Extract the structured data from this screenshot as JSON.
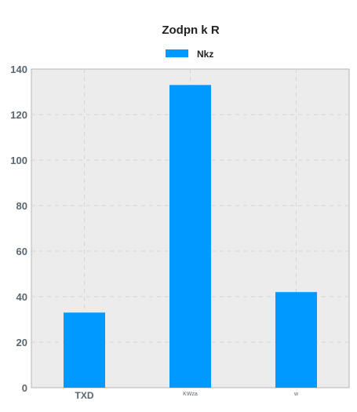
{
  "chart_data": {
    "type": "bar",
    "title": "Zodpn k R",
    "xlabel": "",
    "ylabel": "",
    "categories": [
      "TXD",
      "KWza",
      "w"
    ],
    "series": [
      {
        "name": "Nkz",
        "values": [
          33,
          133,
          42
        ],
        "color": "#0099ff"
      }
    ],
    "ylim": [
      0,
      140
    ],
    "yticks": [
      0,
      20,
      40,
      60,
      80,
      100,
      120,
      140
    ],
    "grid": true,
    "legend": "top-center",
    "colors": {
      "plot_background": "#ececec",
      "grid": "#d4d4d4",
      "axis_text": "#5a6770",
      "title_text": "#222222"
    }
  }
}
